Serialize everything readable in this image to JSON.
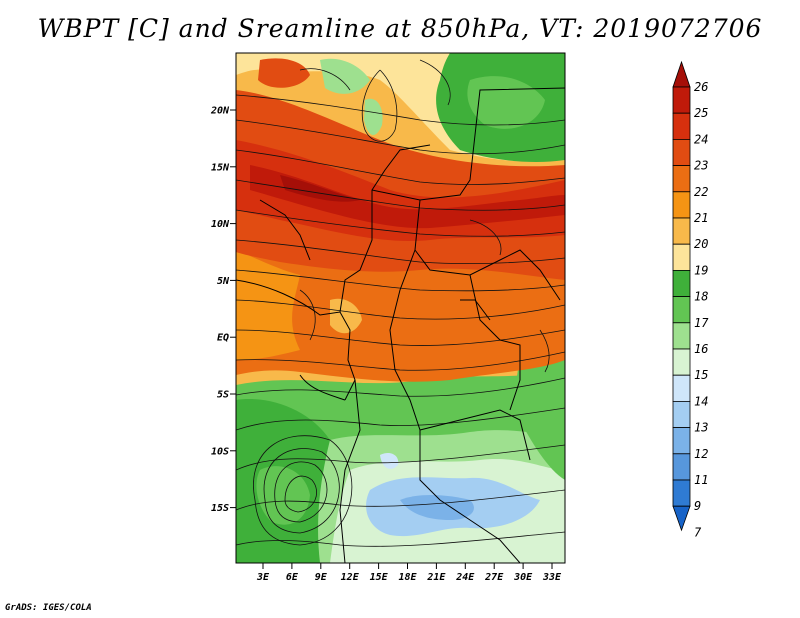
{
  "title": "WBPT [C] and Sreamline at 850hPa, VT: 2019072706",
  "credit": "GrADS: IGES/COLA",
  "map": {
    "latitude_labels": [
      "20N",
      "15N",
      "10N",
      "5N",
      "EQ",
      "5S",
      "10S",
      "15S"
    ],
    "longitude_labels": [
      "3E",
      "6E",
      "9E",
      "12E",
      "15E",
      "18E",
      "21E",
      "24E",
      "27E",
      "30E",
      "33E"
    ],
    "field": "Wet-bulb potential temperature",
    "level": "850hPa",
    "valid_time": "2019072706"
  },
  "colorbar": {
    "labels": [
      "26",
      "25",
      "24",
      "23",
      "22",
      "21",
      "20",
      "19",
      "18",
      "17",
      "16",
      "15",
      "14",
      "13",
      "12",
      "11",
      "9",
      "7"
    ],
    "colors": [
      "#a50f08",
      "#c01a0a",
      "#d6300e",
      "#e14c12",
      "#eb6e13",
      "#f59414",
      "#f8b94a",
      "#fde49a",
      "#3fb03a",
      "#62c553",
      "#9ee08f",
      "#d8f3d2",
      "#cfe6fa",
      "#a4cef2",
      "#7bb2e8",
      "#5797dc",
      "#2f7bd3",
      "#1763c8"
    ]
  }
}
